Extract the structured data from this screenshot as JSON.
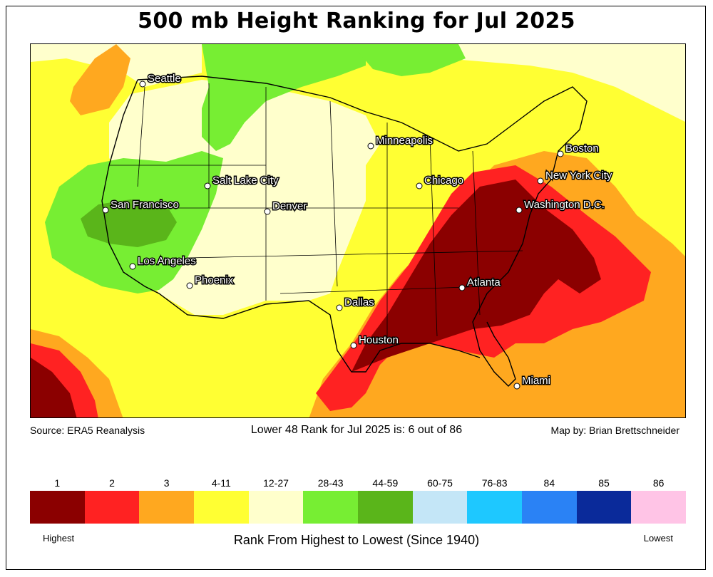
{
  "title": "500 mb Height Ranking for Jul 2025",
  "footer": {
    "source": "Source: ERA5 Reanalysis",
    "rank_statement": "Lower 48 Rank for Jul 2025 is: 6 out of 86",
    "credit": "Map by: Brian Brettschneider"
  },
  "legend": {
    "title": "Rank From Highest to Lowest (Since 1940)",
    "low_end": "Highest",
    "high_end": "Lowest",
    "bins": [
      {
        "label": "1",
        "color": "#8b0000"
      },
      {
        "label": "2",
        "color": "#ff2222"
      },
      {
        "label": "3",
        "color": "#ffa81f"
      },
      {
        "label": "4-11",
        "color": "#ffff33"
      },
      {
        "label": "12-27",
        "color": "#ffffcc"
      },
      {
        "label": "28-43",
        "color": "#77ee33"
      },
      {
        "label": "44-59",
        "color": "#5ab51a"
      },
      {
        "label": "60-75",
        "color": "#c4e6f7"
      },
      {
        "label": "76-83",
        "color": "#1ec8ff"
      },
      {
        "label": "84",
        "color": "#2a82f5"
      },
      {
        "label": "85",
        "color": "#0a2a9a"
      },
      {
        "label": "86",
        "color": "#ffc4e6"
      }
    ]
  },
  "cities": [
    {
      "name": "Seattle"
    },
    {
      "name": "Minneapolis"
    },
    {
      "name": "Boston"
    },
    {
      "name": "Salt Lake City"
    },
    {
      "name": "Chicago"
    },
    {
      "name": "New York City"
    },
    {
      "name": "San Francisco"
    },
    {
      "name": "Denver"
    },
    {
      "name": "Washington D.C."
    },
    {
      "name": "Los Angeles"
    },
    {
      "name": "Phoenix"
    },
    {
      "name": "Atlanta"
    },
    {
      "name": "Dallas"
    },
    {
      "name": "Houston"
    },
    {
      "name": "Miami"
    }
  ]
}
